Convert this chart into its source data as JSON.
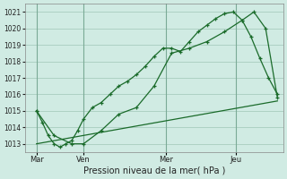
{
  "title": "",
  "xlabel": "Pression niveau de la mer( hPa )",
  "ylabel": "",
  "bg_color": "#d0ebe3",
  "grid_color": "#a8ccbe",
  "line_color": "#1a6b2a",
  "xlim": [
    0,
    88
  ],
  "ylim": [
    1012.5,
    1021.5
  ],
  "yticks": [
    1013,
    1014,
    1015,
    1016,
    1017,
    1018,
    1019,
    1020,
    1021
  ],
  "xtick_positions": [
    4,
    20,
    48,
    72
  ],
  "xtick_labels": [
    "Mar",
    "Ven",
    "Mer",
    "Jeu"
  ],
  "vlines": [
    4,
    20,
    48,
    72
  ],
  "line1_x": [
    4,
    6,
    8,
    10,
    12,
    14,
    16,
    18,
    20,
    23,
    26,
    29,
    32,
    35,
    38,
    41,
    44,
    47,
    50,
    53,
    56,
    59,
    62,
    65,
    68,
    71,
    74,
    77,
    80,
    83,
    86
  ],
  "line1_y": [
    1015.0,
    1014.3,
    1013.5,
    1013.0,
    1012.8,
    1013.0,
    1013.2,
    1013.8,
    1014.5,
    1015.2,
    1015.5,
    1016.0,
    1016.5,
    1016.8,
    1017.2,
    1017.7,
    1018.3,
    1018.8,
    1018.8,
    1018.6,
    1019.2,
    1019.8,
    1020.2,
    1020.6,
    1020.9,
    1021.0,
    1020.5,
    1019.5,
    1018.2,
    1017.0,
    1016.0
  ],
  "line2_x": [
    4,
    10,
    16,
    20,
    26,
    32,
    38,
    44,
    50,
    56,
    62,
    68,
    74,
    78,
    82,
    86
  ],
  "line2_y": [
    1015.0,
    1013.5,
    1013.0,
    1013.0,
    1013.8,
    1014.8,
    1015.2,
    1016.5,
    1018.5,
    1018.8,
    1019.2,
    1019.8,
    1020.5,
    1021.0,
    1020.0,
    1015.8
  ],
  "line3_x": [
    4,
    86
  ],
  "line3_y": [
    1013.0,
    1015.6
  ]
}
